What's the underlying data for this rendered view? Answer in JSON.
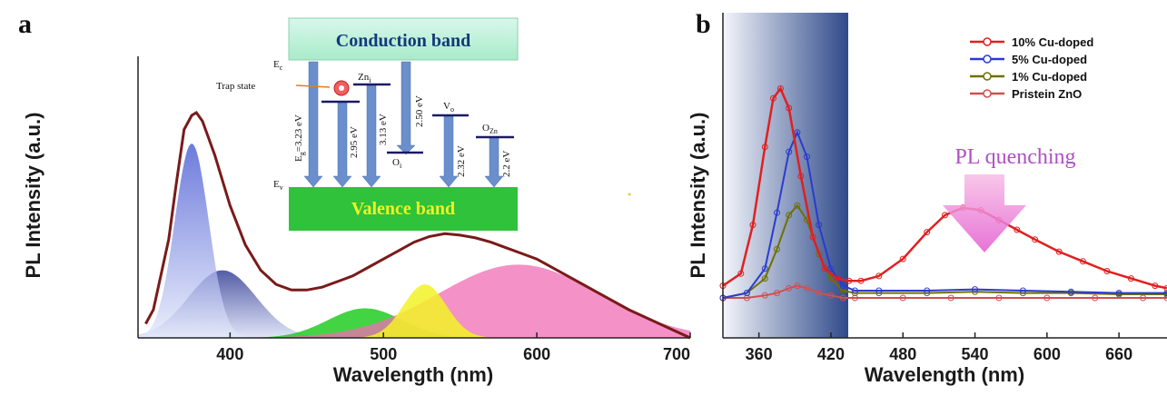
{
  "panels": {
    "a": {
      "letter": "a"
    },
    "b": {
      "letter": "b"
    }
  },
  "inset": {
    "conduction_label": "Conduction band",
    "valence_label": "Valence band",
    "ec_label": "E",
    "ec_sub": "c",
    "ev_label": "E",
    "ev_sub": "v",
    "trap_label": "Trap state",
    "zni_label": "Zn",
    "zni_sub": "i",
    "oi_label": "O",
    "oi_sub": "i",
    "vo_label": "V",
    "vo_sub": "o",
    "ozn_label": "O",
    "ozn_sub": "Zn",
    "transitions": [
      "E₉=3.23 eV",
      "2.95 eV",
      "3.13 eV",
      "2.50 eV",
      "2.32 eV",
      "2.2 eV"
    ],
    "eg_text": "E",
    "eg_sub": "g",
    "eg_value": "=3.23 eV"
  },
  "quench_label": "PL quenching",
  "colors": {
    "envelope": "#7a1a1a",
    "gauss_blue_dark": "#3a4bc8",
    "gauss_blue_light": "#c8d2f0",
    "gauss_navy": "#1f2a8a",
    "gauss_green": "#22cc22",
    "gauss_yellow": "#f2f226",
    "gauss_pink": "#f06cb4",
    "cb_fill": "#bff0d8",
    "vb_fill": "#2fc23a",
    "arrow_blue": "#5a86c8",
    "cu10": "#e02020",
    "cu5": "#2a3bd0",
    "cu1": "#707000",
    "znO": "#d05050",
    "panel_b_shade": "#203a78"
  },
  "chart_data": [
    {
      "type": "line",
      "title": "",
      "xlabel": "Wavelength (nm)",
      "ylabel": "PL Intensity (a.u.)",
      "xlim": [
        340,
        700
      ],
      "ylim": [
        0,
        1
      ],
      "x_ticks": [
        400,
        500,
        600,
        700
      ],
      "x_tick_labels": [
        "400",
        "500",
        "600",
        "700"
      ],
      "grid": false,
      "series": [
        {
          "kind": "envelope",
          "x": [
            345,
            350,
            360,
            365,
            370,
            375,
            378,
            382,
            390,
            400,
            410,
            420,
            430,
            440,
            450,
            460,
            470,
            480,
            490,
            500,
            510,
            520,
            530,
            540,
            550,
            560,
            570,
            580,
            590,
            600,
            620,
            640,
            660,
            680,
            700
          ],
          "y": [
            0.05,
            0.1,
            0.35,
            0.55,
            0.74,
            0.79,
            0.8,
            0.77,
            0.65,
            0.47,
            0.33,
            0.24,
            0.19,
            0.17,
            0.17,
            0.18,
            0.2,
            0.22,
            0.25,
            0.28,
            0.31,
            0.34,
            0.36,
            0.37,
            0.365,
            0.355,
            0.34,
            0.32,
            0.3,
            0.28,
            0.22,
            0.16,
            0.1,
            0.05,
            0.0
          ]
        },
        {
          "kind": "gaussian",
          "center": 375,
          "height": 0.69,
          "width": 11
        },
        {
          "kind": "gaussian",
          "center": 395,
          "height": 0.24,
          "width": 22
        },
        {
          "kind": "gaussian",
          "center": 488,
          "height": 0.105,
          "width": 24
        },
        {
          "kind": "gaussian",
          "center": 527,
          "height": 0.19,
          "width": 14
        },
        {
          "kind": "gaussian",
          "center": 588,
          "height": 0.26,
          "width": 52
        }
      ]
    },
    {
      "type": "line",
      "title": "",
      "xlabel": "Wavelength (nm)",
      "ylabel": "PL Intensity (a.u.)",
      "xlim": [
        330,
        700
      ],
      "ylim": [
        0,
        1
      ],
      "x_ticks": [
        360,
        420,
        480,
        540,
        600,
        660
      ],
      "x_tick_labels": [
        "360",
        "420",
        "480",
        "540",
        "600",
        "660"
      ],
      "legend_position": "top-right",
      "grid": false,
      "series": [
        {
          "name": "10% Cu-doped",
          "x": [
            330,
            345,
            355,
            365,
            372,
            378,
            385,
            395,
            405,
            415,
            425,
            435,
            445,
            460,
            480,
            500,
            515,
            530,
            545,
            560,
            575,
            590,
            610,
            630,
            650,
            670,
            690,
            700
          ],
          "y": [
            0.05,
            0.1,
            0.3,
            0.62,
            0.82,
            0.86,
            0.78,
            0.5,
            0.25,
            0.12,
            0.08,
            0.07,
            0.07,
            0.09,
            0.16,
            0.27,
            0.34,
            0.37,
            0.36,
            0.32,
            0.28,
            0.24,
            0.19,
            0.15,
            0.11,
            0.08,
            0.05,
            0.04
          ]
        },
        {
          "name": "5%  Cu-doped",
          "x": [
            330,
            350,
            365,
            375,
            385,
            392,
            400,
            410,
            420,
            430,
            440,
            460,
            500,
            540,
            580,
            620,
            660,
            700
          ],
          "y": [
            0.0,
            0.02,
            0.12,
            0.35,
            0.6,
            0.68,
            0.58,
            0.3,
            0.12,
            0.05,
            0.03,
            0.03,
            0.03,
            0.035,
            0.03,
            0.025,
            0.02,
            0.02
          ]
        },
        {
          "name": "1%  Cu-doped",
          "x": [
            330,
            350,
            365,
            375,
            385,
            392,
            400,
            410,
            420,
            430,
            440,
            460,
            500,
            540,
            580,
            620,
            660,
            700
          ],
          "y": [
            0.0,
            0.02,
            0.08,
            0.2,
            0.34,
            0.38,
            0.32,
            0.18,
            0.08,
            0.03,
            0.02,
            0.02,
            0.02,
            0.025,
            0.02,
            0.02,
            0.015,
            0.015
          ]
        },
        {
          "name": "Pristein ZnO",
          "x": [
            330,
            350,
            365,
            375,
            385,
            392,
            400,
            410,
            420,
            430,
            440,
            480,
            520,
            560,
            600,
            640,
            680,
            700
          ],
          "y": [
            0.0,
            0.0,
            0.01,
            0.02,
            0.04,
            0.05,
            0.04,
            0.02,
            0.01,
            0.0,
            0.0,
            0.0,
            0.0,
            0.0,
            0.0,
            0.0,
            0.0,
            0.0
          ]
        }
      ]
    }
  ]
}
